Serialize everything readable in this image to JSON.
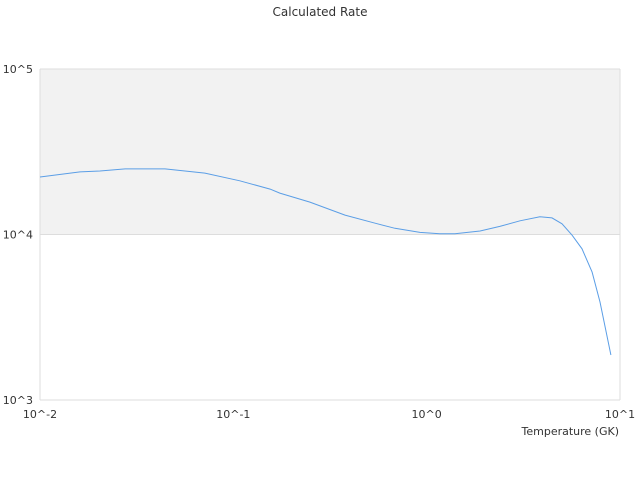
{
  "chart_data": {
    "type": "line",
    "title": "Calculated Rate",
    "xlabel": "Temperature (GK)",
    "ylabel": "",
    "xscale": "log",
    "yscale": "log",
    "xlim": [
      0.01,
      10
    ],
    "ylim": [
      1000,
      100000
    ],
    "x_ticks": [
      {
        "value": 0.01,
        "label": "10^-2"
      },
      {
        "value": 0.1,
        "label": "10^-1"
      },
      {
        "value": 1,
        "label": "10^0"
      },
      {
        "value": 10,
        "label": "10^1"
      }
    ],
    "y_ticks": [
      {
        "value": 1000,
        "label": "10^3"
      },
      {
        "value": 10000,
        "label": "10^4"
      },
      {
        "value": 100000,
        "label": "10^5"
      }
    ],
    "grid": true,
    "band_color": "#f2f2f2",
    "line_color": "#5b9ee6",
    "series": [
      {
        "x": [
          0.01,
          0.0161,
          0.0204,
          0.0276,
          0.0443,
          0.0713,
          0.108,
          0.155,
          0.174,
          0.249,
          0.378,
          0.541,
          0.686,
          0.924,
          1.17,
          1.4,
          1.89,
          2.39,
          3.04,
          3.85,
          4.45,
          5.01,
          5.65,
          6.36,
          7.17,
          7.88,
          8.97
        ],
        "y": [
          22250,
          23900,
          24200,
          24900,
          24900,
          23500,
          21100,
          18800,
          17800,
          15700,
          13100,
          11700,
          10900,
          10300,
          10100,
          10100,
          10500,
          11200,
          12100,
          12800,
          12600,
          11600,
          9900,
          8200,
          5930,
          3910,
          1870
        ]
      }
    ]
  }
}
